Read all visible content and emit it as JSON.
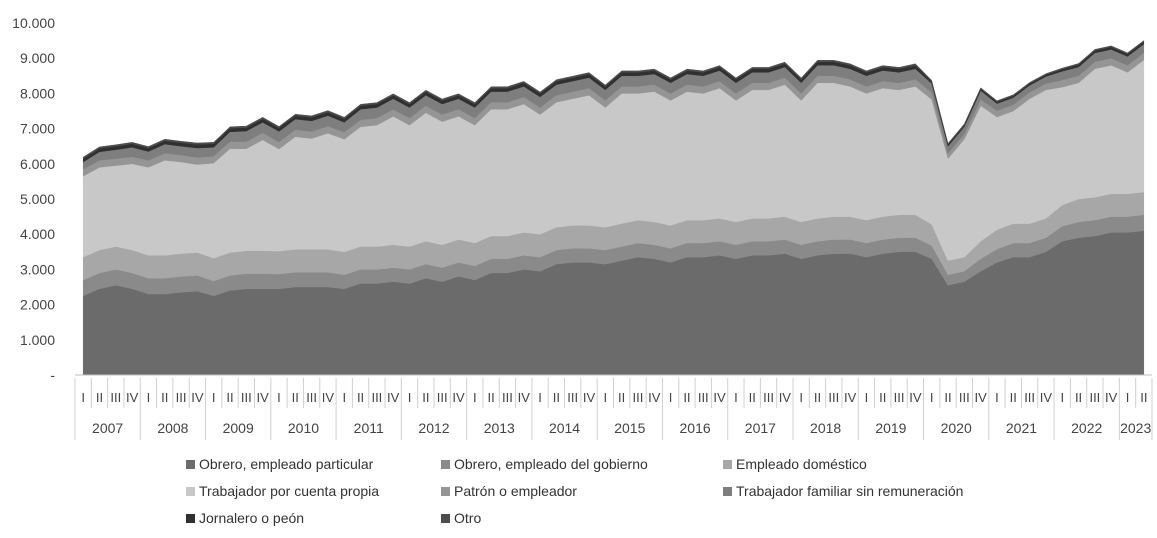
{
  "chart_data": {
    "type": "area",
    "stacked": true,
    "grid": false,
    "legend_placement": "bottom",
    "ylim": [
      0,
      10000
    ],
    "y_ticks": [
      "-",
      "1.000",
      "2.000",
      "3.000",
      "4.000",
      "5.000",
      "6.000",
      "7.000",
      "8.000",
      "9.000",
      "10.000"
    ],
    "years": [
      "2007",
      "2008",
      "2009",
      "2010",
      "2011",
      "2012",
      "2013",
      "2014",
      "2015",
      "2016",
      "2017",
      "2018",
      "2019",
      "2020",
      "2021",
      "2022",
      "2023"
    ],
    "quarter_labels": [
      "I",
      "II",
      "III",
      "IV"
    ],
    "x": [
      "2007-I",
      "2007-II",
      "2007-III",
      "2007-IV",
      "2008-I",
      "2008-II",
      "2008-III",
      "2008-IV",
      "2009-I",
      "2009-II",
      "2009-III",
      "2009-IV",
      "2010-I",
      "2010-II",
      "2010-III",
      "2010-IV",
      "2011-I",
      "2011-II",
      "2011-III",
      "2011-IV",
      "2012-I",
      "2012-II",
      "2012-III",
      "2012-IV",
      "2013-I",
      "2013-II",
      "2013-III",
      "2013-IV",
      "2014-I",
      "2014-II",
      "2014-III",
      "2014-IV",
      "2015-I",
      "2015-II",
      "2015-III",
      "2015-IV",
      "2016-I",
      "2016-II",
      "2016-III",
      "2016-IV",
      "2017-I",
      "2017-II",
      "2017-III",
      "2017-IV",
      "2018-I",
      "2018-II",
      "2018-III",
      "2018-IV",
      "2019-I",
      "2019-II",
      "2019-III",
      "2019-IV",
      "2020-I",
      "2020-II",
      "2020-III",
      "2020-IV",
      "2021-I",
      "2021-II",
      "2021-III",
      "2021-IV",
      "2022-I",
      "2022-II",
      "2022-III",
      "2022-IV",
      "2023-I",
      "2023-II"
    ],
    "series": [
      {
        "name": "Obrero, empleado particular",
        "color": "#6b6b6b",
        "values": [
          2250,
          2450,
          2550,
          2450,
          2300,
          2300,
          2350,
          2380,
          2250,
          2400,
          2450,
          2450,
          2450,
          2500,
          2500,
          2500,
          2450,
          2600,
          2600,
          2650,
          2600,
          2750,
          2650,
          2800,
          2700,
          2900,
          2900,
          3000,
          2950,
          3150,
          3200,
          3200,
          3150,
          3250,
          3350,
          3300,
          3200,
          3350,
          3350,
          3400,
          3300,
          3400,
          3400,
          3450,
          3300,
          3400,
          3450,
          3450,
          3350,
          3450,
          3500,
          3500,
          3300,
          2550,
          2650,
          2950,
          3200,
          3350,
          3350,
          3500,
          3800,
          3900,
          3950,
          4050,
          4050,
          4100
        ]
      },
      {
        "name": "Obrero, empleado del gobierno",
        "color": "#8a8a8a",
        "values": [
          450,
          450,
          450,
          450,
          450,
          450,
          450,
          450,
          420,
          430,
          430,
          430,
          420,
          420,
          420,
          420,
          400,
          400,
          400,
          400,
          400,
          400,
          400,
          400,
          400,
          400,
          400,
          400,
          400,
          400,
          400,
          400,
          400,
          400,
          400,
          400,
          400,
          400,
          400,
          400,
          400,
          400,
          400,
          400,
          400,
          400,
          400,
          400,
          400,
          400,
          400,
          400,
          380,
          300,
          300,
          350,
          380,
          400,
          400,
          400,
          430,
          450,
          450,
          450,
          450,
          450
        ]
      },
      {
        "name": "Empleado doméstico",
        "color": "#a7a7a7",
        "values": [
          650,
          650,
          650,
          650,
          650,
          650,
          650,
          650,
          650,
          650,
          650,
          650,
          650,
          650,
          650,
          650,
          650,
          650,
          650,
          650,
          650,
          650,
          650,
          650,
          650,
          650,
          650,
          650,
          650,
          650,
          650,
          650,
          650,
          650,
          650,
          650,
          650,
          650,
          650,
          650,
          650,
          650,
          650,
          650,
          650,
          650,
          650,
          650,
          650,
          650,
          650,
          650,
          600,
          400,
          400,
          500,
          550,
          550,
          550,
          550,
          600,
          650,
          650,
          650,
          650,
          650
        ]
      },
      {
        "name": "Trabajador por cuenta propia",
        "color": "#c8c8c8",
        "values": [
          2300,
          2350,
          2300,
          2450,
          2500,
          2700,
          2600,
          2500,
          2700,
          2950,
          2900,
          3150,
          2900,
          3200,
          3150,
          3300,
          3200,
          3400,
          3450,
          3650,
          3450,
          3650,
          3500,
          3500,
          3350,
          3600,
          3600,
          3650,
          3400,
          3550,
          3600,
          3700,
          3400,
          3700,
          3600,
          3700,
          3550,
          3650,
          3600,
          3700,
          3450,
          3650,
          3650,
          3750,
          3450,
          3850,
          3800,
          3700,
          3600,
          3650,
          3550,
          3650,
          3550,
          2900,
          3350,
          3850,
          3200,
          3200,
          3550,
          3650,
          3350,
          3300,
          3650,
          3650,
          3450,
          3750
        ]
      },
      {
        "name": "Patrón o empleador",
        "color": "#959595",
        "values": [
          200,
          200,
          200,
          200,
          200,
          200,
          200,
          200,
          200,
          200,
          200,
          200,
          200,
          200,
          200,
          200,
          200,
          200,
          200,
          200,
          200,
          200,
          200,
          200,
          200,
          200,
          200,
          200,
          200,
          200,
          200,
          200,
          200,
          200,
          200,
          200,
          200,
          200,
          200,
          200,
          200,
          200,
          200,
          200,
          200,
          200,
          200,
          200,
          200,
          200,
          200,
          200,
          200,
          150,
          150,
          180,
          180,
          180,
          180,
          180,
          200,
          200,
          200,
          200,
          200,
          200
        ]
      },
      {
        "name": "Trabajador familiar sin remuneración",
        "color": "#7e7e7e",
        "values": [
          200,
          240,
          250,
          270,
          250,
          260,
          250,
          270,
          250,
          280,
          300,
          300,
          300,
          300,
          300,
          300,
          280,
          300,
          300,
          300,
          300,
          300,
          300,
          300,
          300,
          300,
          300,
          300,
          300,
          300,
          300,
          300,
          300,
          300,
          300,
          300,
          300,
          300,
          300,
          300,
          300,
          300,
          300,
          300,
          300,
          300,
          300,
          300,
          300,
          300,
          300,
          300,
          250,
          200,
          200,
          250,
          200,
          200,
          200,
          200,
          250,
          250,
          250,
          250,
          250,
          250
        ]
      },
      {
        "name": "Jornalero o peón",
        "color": "#303030",
        "values": [
          100,
          100,
          100,
          100,
          100,
          100,
          100,
          100,
          100,
          100,
          100,
          100,
          100,
          100,
          100,
          100,
          100,
          100,
          100,
          100,
          100,
          100,
          100,
          100,
          100,
          100,
          100,
          100,
          100,
          100,
          100,
          100,
          100,
          100,
          100,
          100,
          100,
          100,
          100,
          100,
          100,
          100,
          100,
          100,
          100,
          100,
          100,
          100,
          100,
          100,
          100,
          100,
          50,
          50,
          50,
          50,
          50,
          50,
          50,
          50,
          60,
          70,
          70,
          70,
          70,
          70
        ]
      },
      {
        "name": "Otro",
        "color": "#4d4d4d",
        "values": [
          40,
          40,
          40,
          40,
          40,
          40,
          40,
          40,
          40,
          40,
          40,
          40,
          40,
          40,
          40,
          40,
          40,
          40,
          40,
          40,
          40,
          40,
          40,
          40,
          40,
          40,
          40,
          40,
          40,
          40,
          40,
          40,
          40,
          40,
          40,
          40,
          40,
          40,
          40,
          40,
          40,
          40,
          40,
          40,
          40,
          40,
          40,
          40,
          40,
          40,
          40,
          40,
          40,
          30,
          30,
          30,
          30,
          30,
          30,
          30,
          30,
          30,
          30,
          30,
          30,
          30
        ]
      }
    ]
  }
}
